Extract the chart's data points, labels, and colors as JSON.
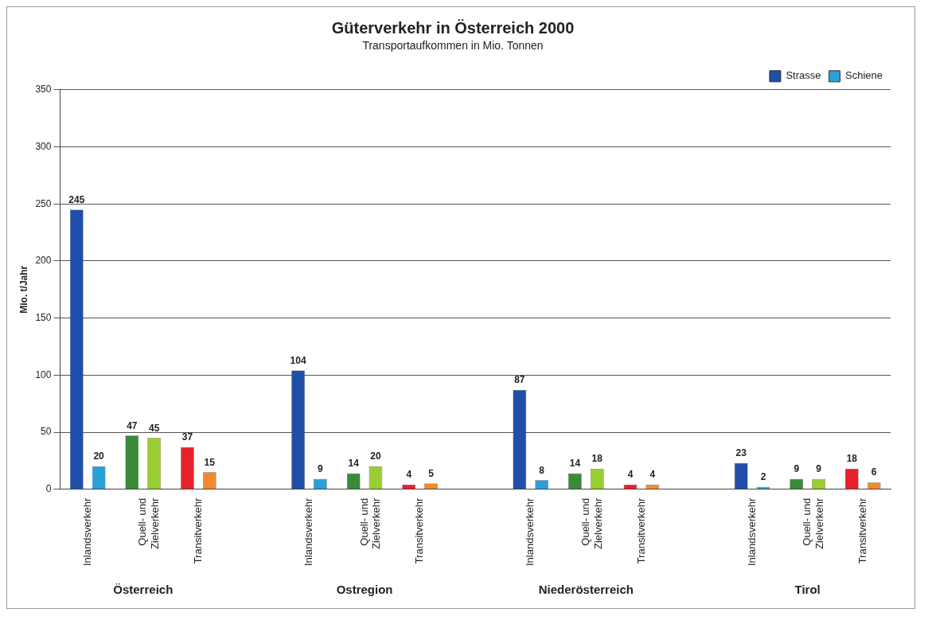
{
  "chart_data": {
    "type": "bar",
    "title": "Güterverkehr in Österreich 2000",
    "subtitle": "Transportaufkommen in Mio. Tonnen",
    "ylabel": "Mio. t/Jahr",
    "categories": [
      "Inlandsverkehr",
      "Quell- und Zielverkehr",
      "Transitverkehr",
      null,
      "Inlandsverkehr",
      "Quell- und Zielverkehr",
      "Transitverkehr",
      null,
      "Inlandsverkehr",
      "Quell- und Zielverkehr",
      "Transitverkehr",
      null,
      "Inlandsverkehr",
      "Quell- und Zielverkehr",
      "Transitverkehr"
    ],
    "series": [
      {
        "name": "Strasse",
        "colors": [
          "#1f4fa8",
          "#3a8a3a",
          "#e8202a",
          null,
          "#1f4fa8",
          "#3a8a3a",
          "#e8202a",
          null,
          "#1f4fa8",
          "#3a8a3a",
          "#e8202a",
          null,
          "#1f4fa8",
          "#3a8a3a",
          "#e8202a"
        ],
        "values": [
          245,
          47,
          37,
          null,
          104,
          14,
          4,
          null,
          87,
          14,
          4,
          null,
          23,
          9,
          18
        ]
      },
      {
        "name": "Schiene",
        "colors": [
          "#2aa0d8",
          "#9acd32",
          "#f08a30",
          null,
          "#2aa0d8",
          "#9acd32",
          "#f08a30",
          null,
          "#2aa0d8",
          "#9acd32",
          "#f08a30",
          null,
          "#2aa0d8",
          "#9acd32",
          "#f08a30"
        ],
        "values": [
          20,
          45,
          15,
          null,
          9,
          20,
          5,
          null,
          8,
          18,
          4,
          null,
          2,
          9,
          6
        ]
      }
    ],
    "annotations": [
      "Österreich",
      "Ostregion",
      "Niederösterreich",
      "Tirol"
    ],
    "ylim": [
      0,
      350
    ],
    "yticks": [
      0,
      50,
      100,
      150,
      200,
      250,
      300,
      350
    ],
    "grid": "y",
    "legend": "top right",
    "data_labels": true
  }
}
